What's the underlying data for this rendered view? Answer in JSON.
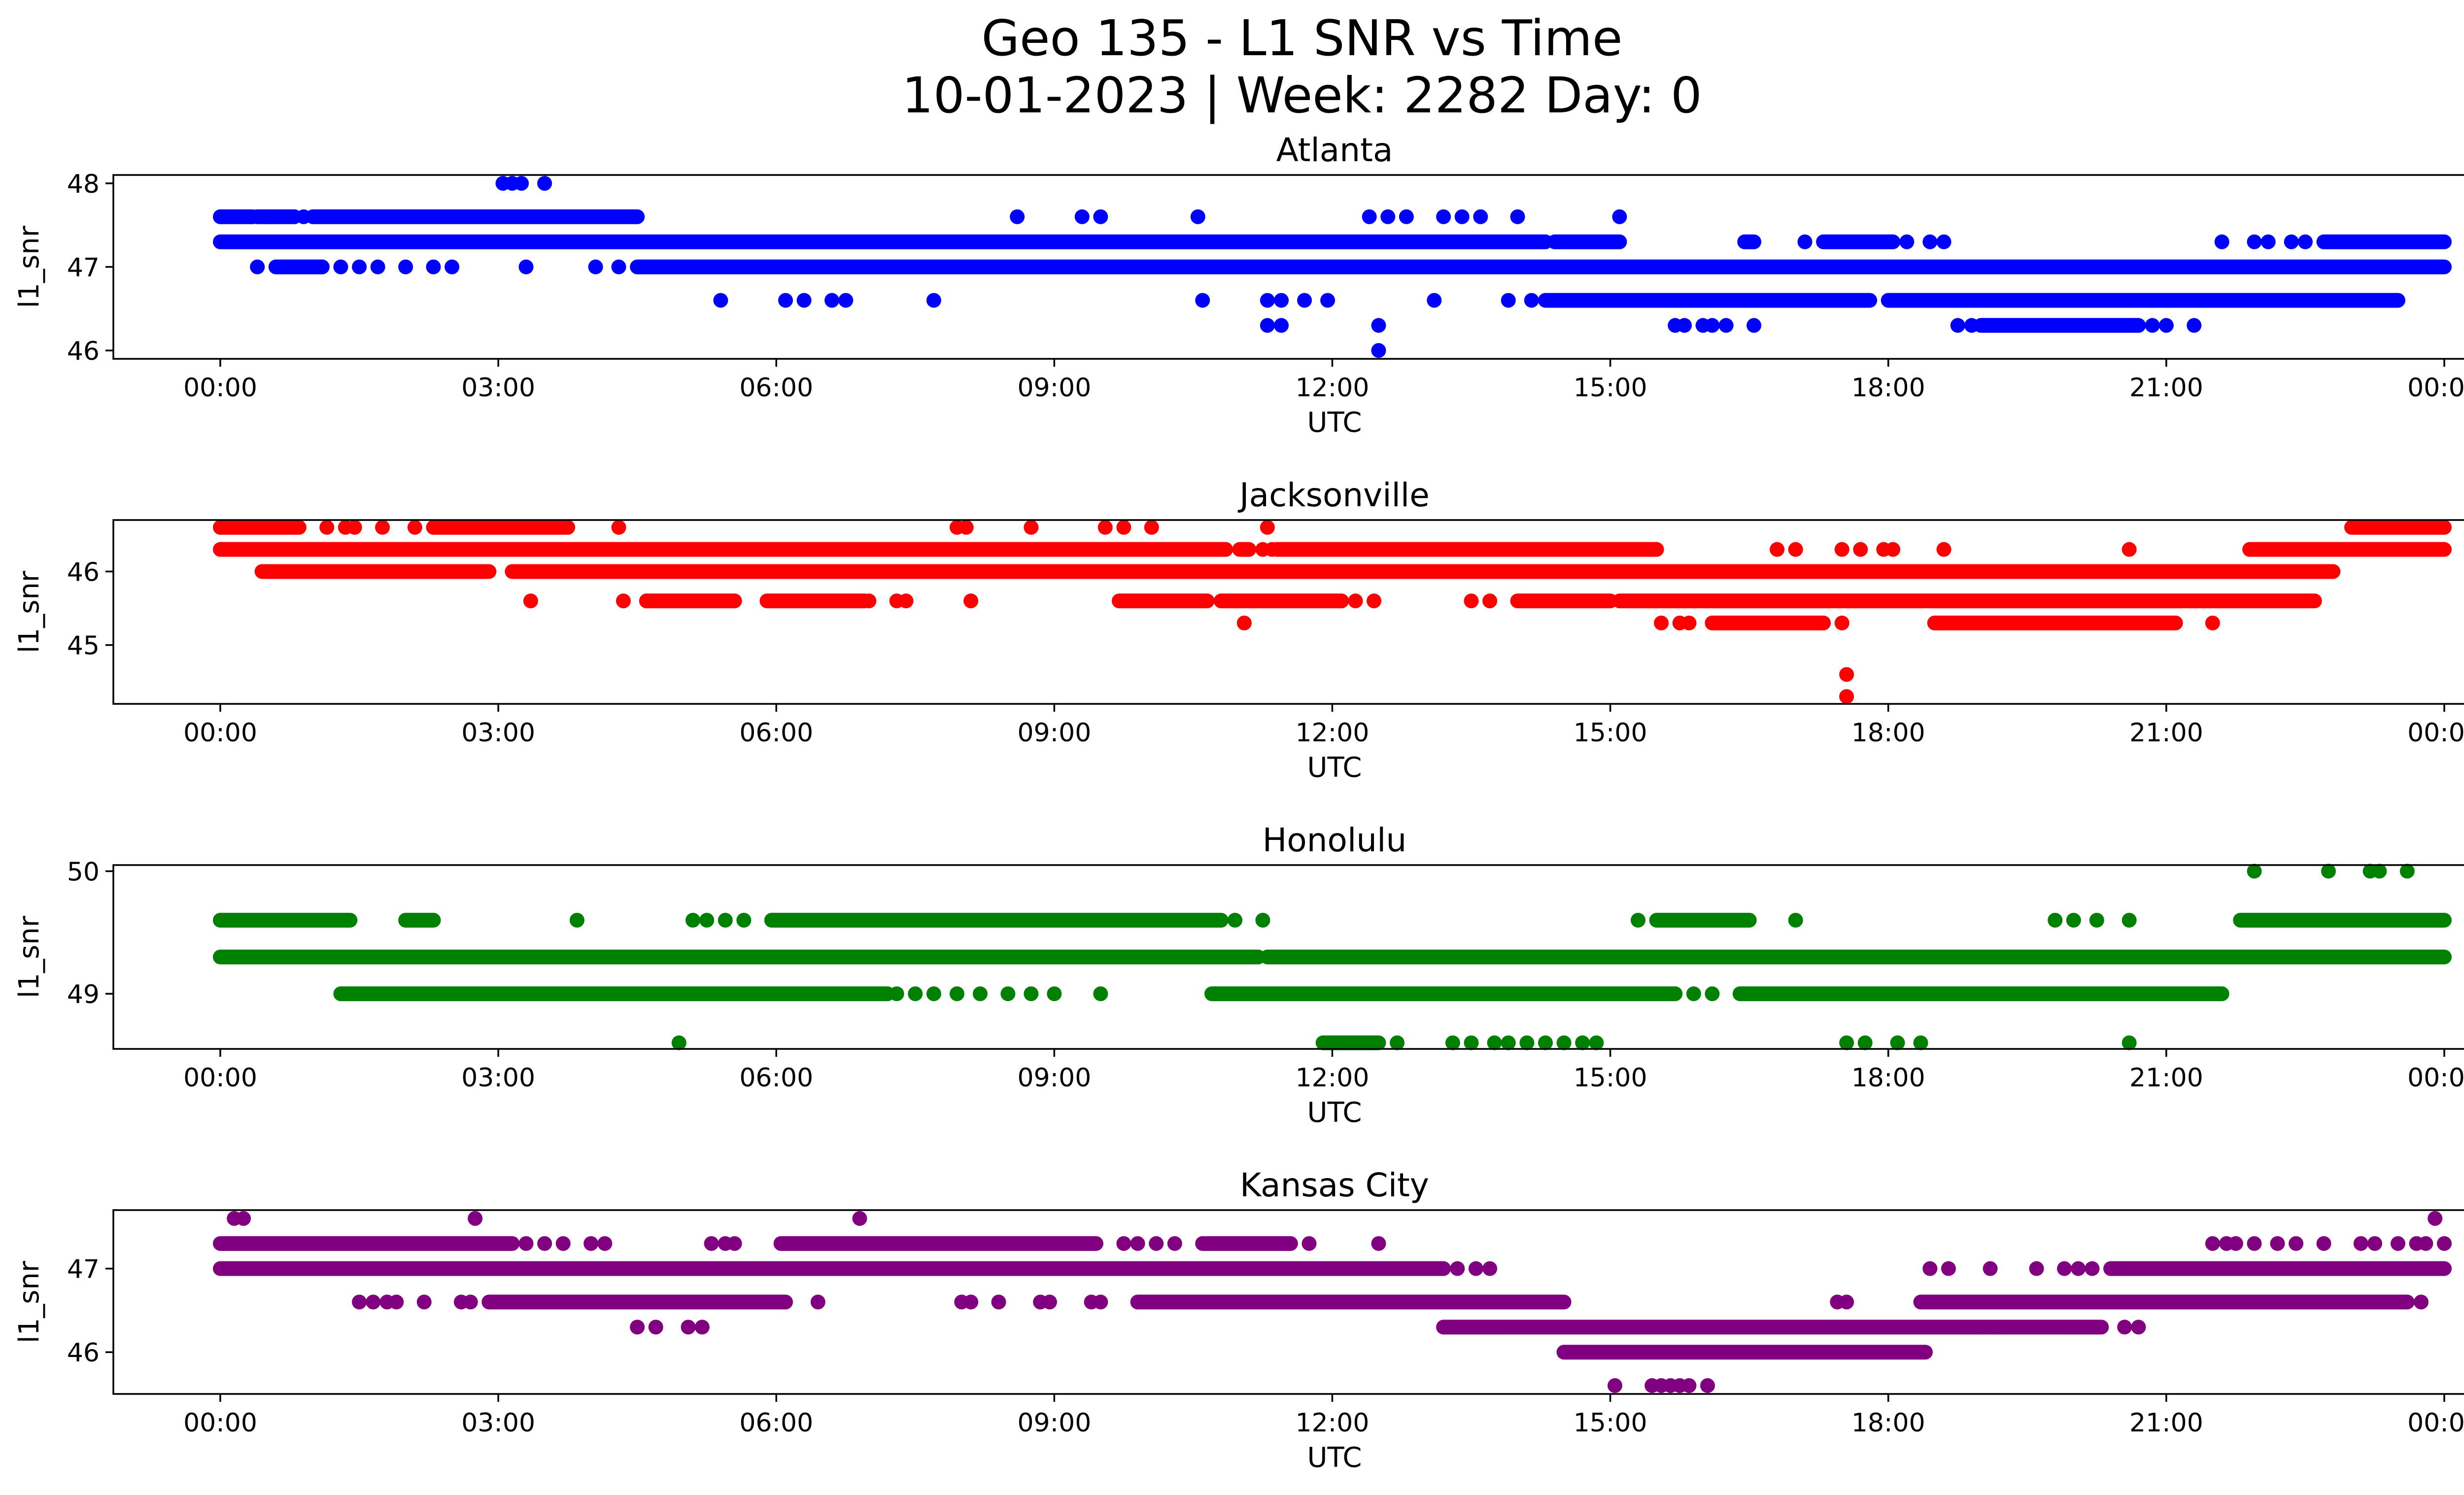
{
  "chart_data": {
    "type": "scatter",
    "title_line1": "Geo 135 - L1 SNR vs Time",
    "title_line2": "10-01-2023 | Week: 2282 Day: 0",
    "x_tick_labels": [
      "00:00",
      "03:00",
      "06:00",
      "09:00",
      "12:00",
      "15:00",
      "18:00",
      "21:00",
      "00:00"
    ],
    "x_range_hours": [
      0,
      24
    ],
    "subplots": [
      {
        "name": "Atlanta",
        "color": "#0000ff",
        "xlabel": "UTC",
        "ylabel": "l1_snr",
        "ylim": [
          45.9,
          48.1
        ],
        "yticks": [
          46,
          47,
          48
        ],
        "levels": [
          {
            "y": 47.6,
            "segments": [
              [
                0.0,
                0.35
              ],
              [
                0.4,
                0.8
              ],
              [
                1.0,
                4.5
              ]
            ],
            "points": [
              0.55,
              0.9,
              8.6,
              9.3,
              9.5,
              10.55,
              12.4,
              12.6,
              12.8,
              13.2,
              13.4,
              13.6,
              14.0,
              15.1
            ]
          },
          {
            "y": 47.3,
            "segments": [
              [
                0.0,
                14.3
              ],
              [
                14.4,
                15.1
              ],
              [
                16.45,
                16.55
              ],
              [
                17.3,
                18.05
              ],
              [
                22.7,
                24.0
              ]
            ],
            "points": [
              17.1,
              18.2,
              18.45,
              18.6,
              21.6,
              21.95,
              22.1,
              22.35,
              22.5
            ]
          },
          {
            "y": 47.0,
            "segments": [
              [
                0.6,
                1.1
              ],
              [
                4.5,
                24.0
              ]
            ],
            "points": [
              0.4,
              1.3,
              1.5,
              1.7,
              2.0,
              2.3,
              2.5,
              3.3,
              4.05,
              4.3
            ]
          },
          {
            "y": 46.6,
            "segments": [
              [
                14.3,
                17.8
              ],
              [
                18.0,
                23.5
              ]
            ],
            "points": [
              5.4,
              6.1,
              6.3,
              6.6,
              6.75,
              7.7,
              10.6,
              11.3,
              11.45,
              11.7,
              11.95,
              13.1,
              13.9,
              14.15
            ]
          },
          {
            "y": 46.3,
            "segments": [
              [
                19.0,
                20.7
              ]
            ],
            "points": [
              11.3,
              11.45,
              12.5,
              15.7,
              15.8,
              16.0,
              16.1,
              16.25,
              16.55,
              18.75,
              18.9,
              20.85,
              21.0,
              21.3
            ]
          },
          {
            "y": 46.0,
            "segments": [],
            "points": [
              12.5
            ]
          },
          {
            "y": 48.0,
            "segments": [],
            "points": [
              3.05,
              3.15,
              3.25,
              3.5
            ]
          }
        ]
      },
      {
        "name": "Jacksonville",
        "color": "#ff0000",
        "xlabel": "UTC",
        "ylabel": "l1_snr",
        "ylim": [
          44.2,
          46.7
        ],
        "yticks": [
          45,
          46
        ],
        "levels": [
          {
            "y": 46.6,
            "segments": [
              [
                0.0,
                0.85
              ],
              [
                2.3,
                3.75
              ],
              [
                23.0,
                24.0
              ]
            ],
            "points": [
              1.15,
              1.35,
              1.45,
              1.75,
              2.1,
              4.3,
              7.95,
              8.05,
              8.75,
              9.55,
              9.75,
              10.05,
              11.3
            ]
          },
          {
            "y": 46.3,
            "segments": [
              [
                0.0,
                10.85
              ],
              [
                11.0,
                11.1
              ],
              [
                11.4,
                15.5
              ],
              [
                21.9,
                24.0
              ]
            ],
            "points": [
              11.25,
              11.35,
              16.8,
              17.0,
              17.5,
              17.7,
              17.95,
              18.05,
              18.6,
              20.6
            ]
          },
          {
            "y": 46.0,
            "segments": [
              [
                0.45,
                2.9
              ],
              [
                3.15,
                22.8
              ]
            ],
            "points": []
          },
          {
            "y": 45.6,
            "segments": [
              [
                4.6,
                5.55
              ],
              [
                5.9,
                6.95
              ],
              [
                9.7,
                10.65
              ],
              [
                10.8,
                12.1
              ],
              [
                14.0,
                15.0
              ],
              [
                15.1,
                22.6
              ]
            ],
            "points": [
              3.35,
              4.35,
              4.6,
              7.0,
              7.3,
              7.4,
              8.1,
              12.25,
              12.45,
              13.5,
              13.7
            ]
          },
          {
            "y": 45.3,
            "segments": [
              [
                16.1,
                17.3
              ],
              [
                18.5,
                21.1
              ]
            ],
            "points": [
              11.05,
              15.55,
              15.75,
              15.85,
              17.5,
              21.5
            ]
          },
          {
            "y": 44.6,
            "segments": [],
            "points": [
              17.55
            ]
          },
          {
            "y": 44.3,
            "segments": [],
            "points": [
              17.55
            ]
          }
        ]
      },
      {
        "name": "Honolulu",
        "color": "#008000",
        "xlabel": "UTC",
        "ylabel": "l1_snr",
        "ylim": [
          48.55,
          50.05
        ],
        "yticks": [
          49,
          50
        ],
        "levels": [
          {
            "y": 50.0,
            "segments": [],
            "points": [
              21.95,
              22.75,
              23.2,
              23.3,
              23.6
            ]
          },
          {
            "y": 49.6,
            "segments": [
              [
                0.0,
                1.4
              ],
              [
                2.0,
                2.3
              ],
              [
                5.95,
                10.8
              ],
              [
                15.5,
                16.5
              ],
              [
                21.8,
                24.0
              ]
            ],
            "points": [
              5.1,
              5.25,
              5.45,
              5.65,
              10.95,
              11.25,
              15.3,
              17.0,
              19.8,
              20.0,
              20.25,
              20.6,
              3.85
            ]
          },
          {
            "y": 49.3,
            "segments": [
              [
                0.0,
                11.2
              ],
              [
                11.3,
                24.0
              ]
            ],
            "points": []
          },
          {
            "y": 49.0,
            "segments": [
              [
                1.3,
                7.2
              ],
              [
                10.7,
                15.7
              ],
              [
                16.4,
                21.6
              ]
            ],
            "points": [
              7.3,
              7.5,
              7.7,
              7.95,
              8.2,
              8.5,
              8.75,
              9.0,
              9.5,
              15.9,
              16.1
            ]
          },
          {
            "y": 48.6,
            "segments": [
              [
                11.9,
                12.5
              ]
            ],
            "points": [
              12.7,
              13.3,
              13.5,
              13.75,
              13.9,
              14.1,
              14.3,
              14.5,
              14.7,
              14.85,
              17.55,
              17.75,
              18.1,
              18.35,
              20.6,
              4.95
            ]
          }
        ]
      },
      {
        "name": "Kansas City",
        "color": "#800080",
        "xlabel": "UTC",
        "ylabel": "l1_snr",
        "ylim": [
          45.5,
          47.7
        ],
        "yticks": [
          46,
          47
        ],
        "levels": [
          {
            "y": 47.6,
            "segments": [],
            "points": [
              0.15,
              0.25,
              2.75,
              6.9,
              23.9
            ]
          },
          {
            "y": 47.3,
            "segments": [
              [
                0.0,
                3.15
              ],
              [
                6.05,
                9.45
              ],
              [
                10.6,
                11.55
              ]
            ],
            "points": [
              3.3,
              3.5,
              3.7,
              4.0,
              4.15,
              5.3,
              5.45,
              5.55,
              9.75,
              9.9,
              10.1,
              10.3,
              11.75,
              12.5,
              21.5,
              21.65,
              21.75,
              21.95,
              22.2,
              22.4,
              22.7,
              23.1,
              23.25,
              23.5,
              23.7,
              23.8,
              24.0
            ]
          },
          {
            "y": 47.0,
            "segments": [
              [
                0.0,
                13.2
              ],
              [
                20.4,
                24.0
              ]
            ],
            "points": [
              13.35,
              13.55,
              13.7,
              18.45,
              18.65,
              19.1,
              19.6,
              19.9,
              20.05,
              20.2
            ]
          },
          {
            "y": 46.6,
            "segments": [
              [
                2.9,
                6.1
              ],
              [
                9.9,
                14.5
              ],
              [
                18.35,
                23.6
              ]
            ],
            "points": [
              1.5,
              1.65,
              1.8,
              1.9,
              2.2,
              2.6,
              2.7,
              6.45,
              8.0,
              8.1,
              8.4,
              8.85,
              8.95,
              9.4,
              9.5,
              17.45,
              17.55,
              23.75
            ]
          },
          {
            "y": 46.3,
            "segments": [
              [
                13.2,
                20.3
              ]
            ],
            "points": [
              4.5,
              4.7,
              5.05,
              5.2,
              20.55,
              20.7,
              18.85,
              19.0,
              19.2
            ]
          },
          {
            "y": 46.0,
            "segments": [
              [
                14.5,
                18.4
              ]
            ],
            "points": []
          },
          {
            "y": 45.6,
            "segments": [],
            "points": [
              15.05,
              15.45,
              15.55,
              15.65,
              15.75,
              15.85,
              16.05
            ]
          }
        ]
      }
    ]
  }
}
